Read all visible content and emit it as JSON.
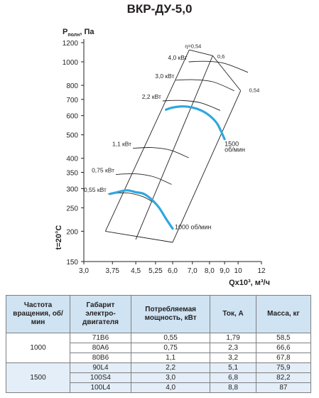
{
  "page": {
    "title": "ВКР-ДУ-5,0"
  },
  "chart_data": {
    "type": "line",
    "title": "ВКР-ДУ-5,0",
    "ylabel_main": "P",
    "ylabel_sub": "полн",
    "ylabel_unit": ", Па",
    "xlabel": "Qx10³, м³/ч",
    "side_label": "t=20°C",
    "xlim": [
      3,
      12
    ],
    "ylim": [
      150,
      1200
    ],
    "yscale": "log",
    "xscale": "log",
    "xticks": [
      3,
      3.75,
      4.5,
      5.25,
      6,
      7,
      8,
      9,
      10,
      12
    ],
    "xtick_labels": [
      "3,0",
      "3,75",
      "4,5",
      "5,25",
      "6,0",
      "7,0",
      "8,0",
      "9,0",
      "10",
      "12"
    ],
    "yticks": [
      150,
      200,
      250,
      300,
      350,
      400,
      500,
      600,
      700,
      800,
      1000,
      1200
    ],
    "ytick_labels": [
      "150",
      "200",
      "250",
      "300",
      "350",
      "400",
      "500",
      "600",
      "700",
      "800",
      "1000",
      "1200"
    ],
    "grid": false,
    "series": [
      {
        "name": "1500 об/мин",
        "color": "#2ea7e0",
        "x": [
          5.7,
          6.0,
          6.5,
          7.0,
          7.5,
          8.0,
          8.5,
          9.0
        ],
        "y": [
          635,
          648,
          655,
          648,
          630,
          600,
          555,
          480
        ]
      },
      {
        "name": "1000 об/мин",
        "color": "#2ea7e0",
        "x": [
          3.68,
          3.9,
          4.2,
          4.5,
          4.8,
          5.1,
          5.4,
          5.7,
          6.0
        ],
        "y": [
          285,
          290,
          295,
          290,
          285,
          270,
          250,
          225,
          205
        ]
      }
    ],
    "power_lines": [
      {
        "label": "0,55 кВт",
        "x": [
          3.62,
          4.2,
          4.75,
          5.25
        ],
        "y": [
          285,
          288,
          278,
          260
        ]
      },
      {
        "label": "0,75 кВт",
        "x": [
          3.85,
          4.5,
          5.2,
          5.95
        ],
        "y": [
          343,
          345,
          335,
          312
        ]
      },
      {
        "label": "1,1 кВт",
        "x": [
          4.4,
          5.1,
          5.9,
          6.8
        ],
        "y": [
          440,
          443,
          432,
          402
        ]
      },
      {
        "label": "2,2 кВт",
        "x": [
          5.55,
          6.4,
          7.45,
          8.7
        ],
        "y": [
          690,
          693,
          678,
          630
        ]
      },
      {
        "label": "3,0 кВт",
        "x": [
          6.15,
          7.0,
          8.2,
          9.7
        ],
        "y": [
          840,
          844,
          828,
          760
        ]
      },
      {
        "label": "4,0 кВт",
        "x": [
          6.8,
          7.8,
          9.0,
          10.8
        ],
        "y": [
          1000,
          1005,
          985,
          905
        ]
      }
    ],
    "speed_lines": [
      {
        "x": [
          3.55,
          6.83
        ],
        "y": [
          200,
          1120
        ]
      },
      {
        "x": [
          4.5,
          8.2
        ],
        "y": [
          185,
          1060
        ]
      },
      {
        "x": [
          6.0,
          10.2
        ],
        "y": [
          180,
          760
        ]
      }
    ],
    "efficiency_labels": [
      {
        "label": "η=0,54",
        "x": 6.6,
        "y": 1140
      },
      {
        "label": "0,6",
        "x": 8.5,
        "y": 1035
      },
      {
        "label": "0,54",
        "x": 10.9,
        "y": 750
      }
    ],
    "curve_labels": [
      {
        "label": "1500",
        "x": 9.0,
        "y": 450
      },
      {
        "label": "об/мин",
        "x": 9.0,
        "y": 425
      },
      {
        "label": "1000 об/мин",
        "x": 6.1,
        "y": 204
      }
    ]
  },
  "table": {
    "headers": [
      "Частота вращения, об/мин",
      "Габарит электро-двигателя",
      "Потребляемая мощность, кВт",
      "Ток, А",
      "Масса, кг"
    ],
    "groups": [
      {
        "speed": "1000",
        "rows": [
          [
            "71В6",
            "0,55",
            "1,79",
            "58,5"
          ],
          [
            "80А6",
            "0,75",
            "2,3",
            "66,6"
          ],
          [
            "80В6",
            "1,1",
            "3,2",
            "67,8"
          ]
        ]
      },
      {
        "speed": "1500",
        "rows": [
          [
            "90L4",
            "2,2",
            "5,1",
            "75,9"
          ],
          [
            "100S4",
            "3,0",
            "6,8",
            "82,2"
          ],
          [
            "100L4",
            "4,0",
            "8,8",
            "87"
          ]
        ]
      }
    ]
  }
}
